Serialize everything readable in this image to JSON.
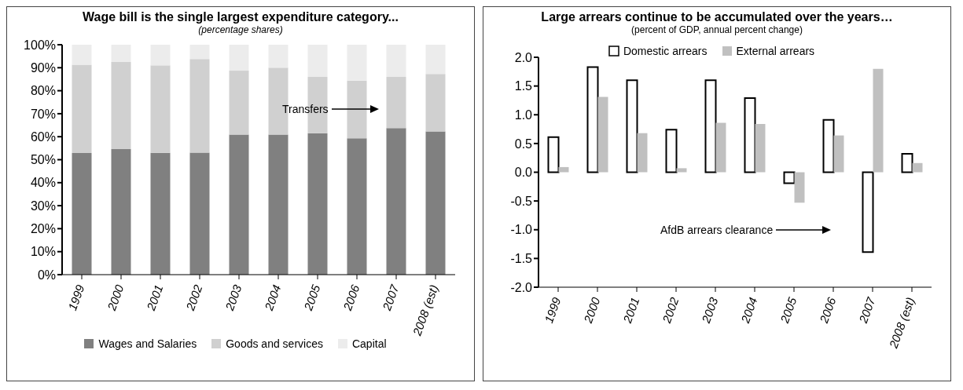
{
  "chart_data": [
    {
      "type": "bar",
      "title": "Wage bill is the single largest expenditure category...",
      "subtitle": "(percentage shares)",
      "stacked": true,
      "legend": "bottom",
      "categories": [
        "1999",
        "2000",
        "2001",
        "2002",
        "2003",
        "2004",
        "2005",
        "2006",
        "2007",
        "2008 (est)"
      ],
      "series": [
        {
          "name": "Wages and Salaries",
          "color": "#808080",
          "values": [
            52.9,
            54.6,
            53.0,
            53.1,
            60.9,
            60.9,
            61.5,
            59.3,
            63.7,
            62.3
          ]
        },
        {
          "name": "Goods and services",
          "color": "#d0d0d0",
          "values": [
            38.4,
            37.9,
            38.0,
            40.7,
            27.8,
            29.1,
            24.5,
            25.1,
            22.3,
            25.0
          ]
        },
        {
          "name": "Capital",
          "color": "#ececec",
          "values": [
            8.7,
            7.5,
            9.0,
            6.2,
            11.3,
            10.0,
            14.0,
            15.6,
            14.0,
            12.7
          ]
        }
      ],
      "ylim": [
        0,
        100
      ],
      "yticks": [
        {
          "value": 0,
          "label": "0%"
        },
        {
          "value": 10,
          "label": "10%"
        },
        {
          "value": 20,
          "label": "20%"
        },
        {
          "value": 30,
          "label": "30%"
        },
        {
          "value": 40,
          "label": "40%"
        },
        {
          "value": 50,
          "label": "50%"
        },
        {
          "value": 60,
          "label": "60%"
        },
        {
          "value": 70,
          "label": "70%"
        },
        {
          "value": 80,
          "label": "80%"
        },
        {
          "value": 90,
          "label": "90%"
        },
        {
          "value": 100,
          "label": "100%"
        }
      ],
      "annotations": [
        "Transfers"
      ]
    },
    {
      "type": "bar",
      "title": "Large arrears continue to be accumulated over the years…",
      "subtitle": "(percent of GDP, annual percent change)",
      "legend": "top",
      "categories": [
        "1999",
        "2000",
        "2001",
        "2002",
        "2003",
        "2004",
        "2005",
        "2006",
        "2007",
        "2008 (est)"
      ],
      "series": [
        {
          "name": "Domestic arrears",
          "color": "#ffffff",
          "values": [
            0.61,
            1.83,
            1.6,
            0.74,
            1.6,
            1.29,
            -0.19,
            0.91,
            -1.39,
            0.32
          ]
        },
        {
          "name": "External arrears",
          "color": "#c0c0c0",
          "values": [
            0.09,
            1.31,
            0.68,
            0.07,
            0.86,
            0.84,
            -0.53,
            0.64,
            1.8,
            0.16
          ]
        }
      ],
      "ylim": [
        -2,
        2
      ],
      "yticks": [
        {
          "value": -2,
          "label": "-2.0"
        },
        {
          "value": -1.5,
          "label": "-1.5"
        },
        {
          "value": -1,
          "label": "-1.0"
        },
        {
          "value": -0.5,
          "label": "-0.5"
        },
        {
          "value": 0,
          "label": "0.0"
        },
        {
          "value": 0.5,
          "label": "0.5"
        },
        {
          "value": 1,
          "label": "1.0"
        },
        {
          "value": 1.5,
          "label": "1.5"
        },
        {
          "value": 2,
          "label": "2.0"
        }
      ],
      "annotations": [
        "AfdB arrears clearance"
      ]
    }
  ]
}
